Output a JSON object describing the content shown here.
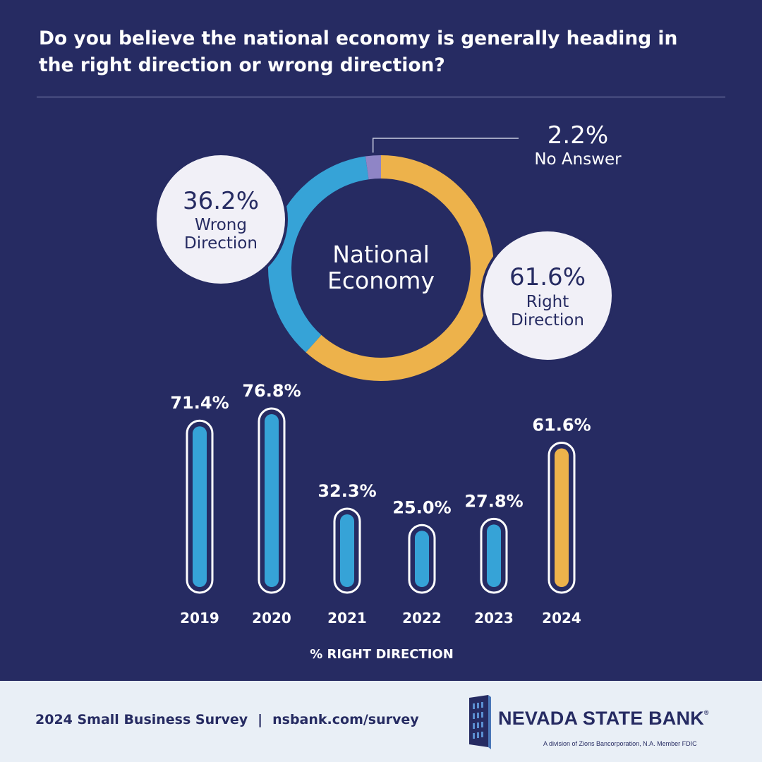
{
  "header": {
    "question": "Do you believe the national economy is generally heading in the right direction or wrong direction?"
  },
  "colors": {
    "background": "#262b62",
    "right": "#edb24b",
    "wrong": "#36a3d7",
    "no_answer": "#8f85c6",
    "bubble": "#f1f0f7",
    "text_dark": "#262b62"
  },
  "chart_data": [
    {
      "type": "pie",
      "style": "donut",
      "center_label": [
        "National",
        "Economy"
      ],
      "slices": [
        {
          "name": "Right Direction",
          "label_lines": [
            "Right",
            "Direction"
          ],
          "value": 61.6,
          "display": "61.6%",
          "color": "#edb24b"
        },
        {
          "name": "Wrong Direction",
          "label_lines": [
            "Wrong",
            "Direction"
          ],
          "value": 36.2,
          "display": "36.2%",
          "color": "#36a3d7"
        },
        {
          "name": "No Answer",
          "label_lines": [
            "No Answer"
          ],
          "value": 2.2,
          "display": "2.2%",
          "color": "#8f85c6"
        }
      ]
    },
    {
      "type": "bar",
      "categories": [
        "2019",
        "2020",
        "2021",
        "2022",
        "2023",
        "2024"
      ],
      "values": [
        71.4,
        76.8,
        32.3,
        25.0,
        27.8,
        61.6
      ],
      "value_labels": [
        "71.4%",
        "76.8%",
        "32.3%",
        "25.0%",
        "27.8%",
        "61.6%"
      ],
      "colors": [
        "#36a3d7",
        "#36a3d7",
        "#36a3d7",
        "#36a3d7",
        "#36a3d7",
        "#edb24b"
      ],
      "xlabel": "% RIGHT DIRECTION",
      "ylabel": "",
      "ylim": [
        0,
        100
      ],
      "grid": false
    }
  ],
  "footer": {
    "survey": "2024 Small Business Survey",
    "separator": "|",
    "url": "nsbank.com/survey",
    "brand": "NEVADA STATE BANK",
    "brand_mark": "®",
    "disclaimer": "A division of Zions Bancorporation, N.A. Member FDIC"
  }
}
